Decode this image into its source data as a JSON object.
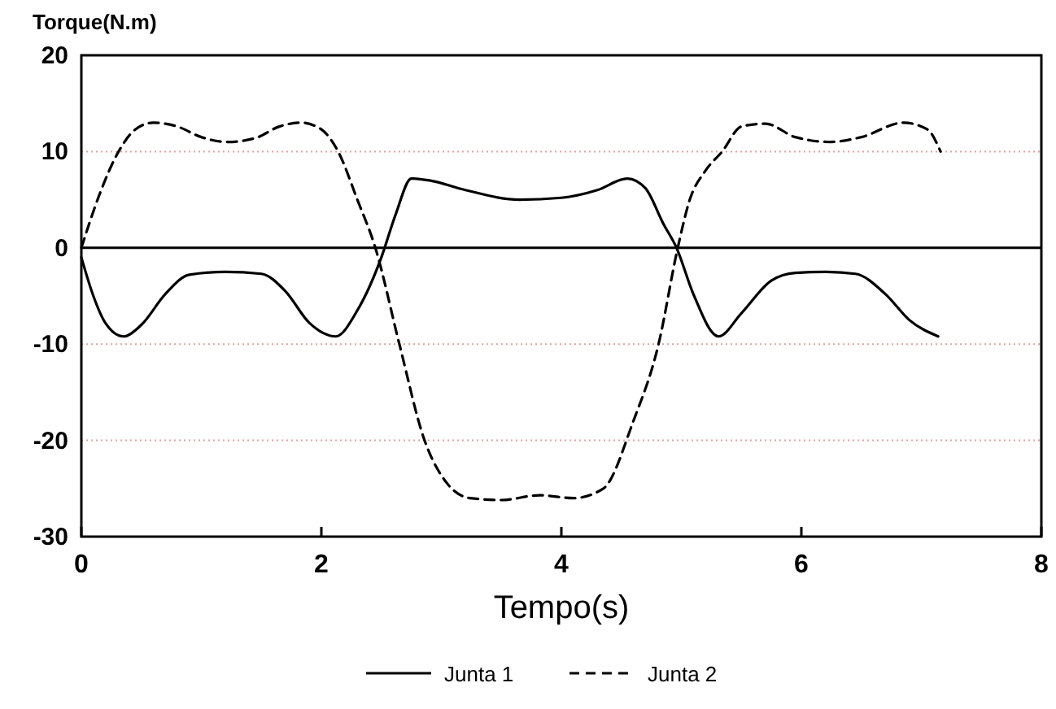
{
  "chart_data": {
    "type": "line",
    "ylabel": "Torque(N.m)",
    "xlabel": "Tempo(s)",
    "xlim": [
      0,
      8
    ],
    "ylim": [
      -30,
      20
    ],
    "xticks": [
      0,
      2,
      4,
      6,
      8
    ],
    "yticks": [
      -30,
      -20,
      -10,
      0,
      10,
      20
    ],
    "grid": "y",
    "legend": "bottom",
    "marker": "none",
    "ref_lines": [
      {
        "axis": "y",
        "value": 0,
        "color": "#000000",
        "line_style": "solid"
      }
    ],
    "series": [
      {
        "name": "Junta 1",
        "color": "#000000",
        "line_style": "solid",
        "x": [
          0,
          0.1,
          0.2,
          0.35,
          0.5,
          0.7,
          0.9,
          1.2,
          1.5,
          1.7,
          1.9,
          2.12,
          2.3,
          2.5,
          2.62,
          2.75,
          2.9,
          3.2,
          3.65,
          4.0,
          4.3,
          4.55,
          4.7,
          4.85,
          4.96,
          5.1,
          5.31,
          5.5,
          5.75,
          5.95,
          6.2,
          6.45,
          6.7,
          6.9,
          7.14
        ],
        "values": [
          -1,
          -5,
          -7.8,
          -9.2,
          -8,
          -4.8,
          -2.8,
          -2.5,
          -2.7,
          -4.5,
          -7.8,
          -9.2,
          -6.5,
          -1,
          3.5,
          7.2,
          7,
          6,
          5,
          5.2,
          6,
          7.2,
          6.2,
          2.5,
          0,
          -4.8,
          -9.2,
          -6.8,
          -3.4,
          -2.6,
          -2.5,
          -2.7,
          -4.8,
          -7.5,
          -9.2
        ]
      },
      {
        "name": "Junta 2",
        "color": "#000000",
        "line_style": "dashed",
        "x": [
          0,
          0.15,
          0.31,
          0.45,
          0.6,
          0.8,
          1.0,
          1.22,
          1.45,
          1.65,
          1.83,
          2.0,
          2.14,
          2.3,
          2.45,
          2.65,
          2.86,
          3.05,
          3.24,
          3.5,
          3.82,
          4.1,
          4.35,
          4.6,
          4.81,
          4.97,
          5.07,
          5.2,
          5.34,
          5.5,
          5.7,
          5.95,
          6.24,
          6.5,
          6.85,
          7.05,
          7.16
        ],
        "values": [
          0,
          5.5,
          10,
          12.3,
          13,
          12.6,
          11.5,
          11,
          11.4,
          12.6,
          13,
          12.3,
          10,
          5,
          0,
          -10,
          -20,
          -24.5,
          -26,
          -26.2,
          -25.7,
          -26,
          -25,
          -18,
          -10,
          0,
          5,
          8,
          10,
          12.6,
          12.9,
          11.5,
          11,
          11.5,
          13,
          12.3,
          10
        ]
      }
    ]
  }
}
